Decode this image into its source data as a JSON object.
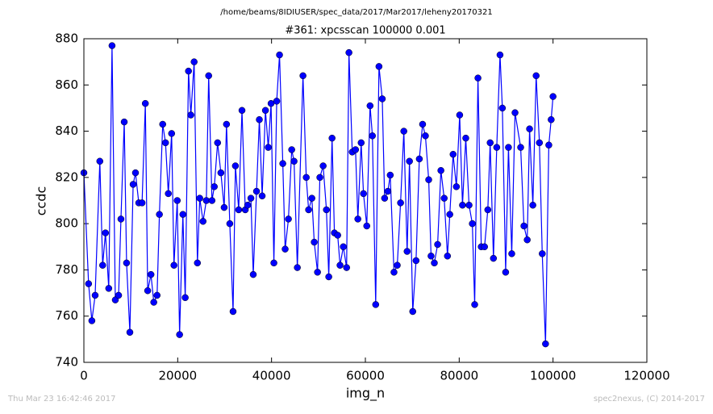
{
  "chart_data": {
    "type": "line",
    "suptitle": "/home/beams/8IDIUSER/spec_data/2017/Mar2017/leheny20170321",
    "title": "#361: xpcsscan 100000 0.001",
    "xlabel": "img_n",
    "ylabel": "ccdc",
    "footer_left": "Thu Mar 23 16:42:46 2017",
    "footer_right": "spec2nexus, (C) 2014-2017",
    "xlim": [
      0,
      120000
    ],
    "xticks": [
      0,
      20000,
      40000,
      60000,
      80000,
      100000,
      120000
    ],
    "ylim": [
      740,
      880
    ],
    "yticks": [
      740,
      760,
      780,
      800,
      820,
      840,
      860,
      880
    ],
    "x": [
      0,
      1000,
      1700,
      2400,
      3400,
      4000,
      4600,
      5300,
      6000,
      6700,
      7400,
      7900,
      8600,
      9100,
      9800,
      10500,
      11000,
      11700,
      12400,
      13100,
      13600,
      14300,
      14900,
      15600,
      16100,
      16800,
      17400,
      18000,
      18700,
      19200,
      19900,
      20400,
      21100,
      21600,
      22300,
      22800,
      23500,
      24200,
      24700,
      25400,
      26100,
      26600,
      27300,
      27800,
      28500,
      29200,
      29900,
      30400,
      31100,
      31800,
      32300,
      33000,
      33700,
      34400,
      34900,
      35600,
      36100,
      36800,
      37400,
      38000,
      38700,
      39300,
      39900,
      40500,
      41100,
      41700,
      42400,
      42900,
      43600,
      44300,
      44800,
      45500,
      46700,
      47400,
      47900,
      48600,
      49100,
      49800,
      50300,
      51000,
      51700,
      52200,
      52900,
      53400,
      54100,
      54600,
      55300,
      56000,
      56500,
      57200,
      57900,
      58400,
      59100,
      59600,
      60300,
      61000,
      61500,
      62200,
      62900,
      63600,
      64100,
      64800,
      65300,
      66100,
      66800,
      67500,
      68200,
      68900,
      69400,
      70100,
      70800,
      71500,
      72200,
      72800,
      73500,
      74000,
      74700,
      75400,
      76100,
      76800,
      77500,
      78000,
      78700,
      79400,
      80100,
      80700,
      81400,
      82100,
      82800,
      83300,
      84000,
      84700,
      85400,
      86100,
      86600,
      87300,
      88000,
      88700,
      89200,
      89900,
      90500,
      91200,
      91900,
      93100,
      93800,
      94500,
      95000,
      95700,
      96400,
      97100,
      97700,
      98400,
      99100,
      99600,
      100000
    ],
    "series": [
      {
        "name": "ccdc",
        "color": "#0000ff",
        "values": [
          822,
          774,
          758,
          769,
          827,
          782,
          796,
          772,
          877,
          767,
          769,
          802,
          844,
          783,
          753,
          817,
          822,
          809,
          809,
          852,
          771,
          778,
          766,
          769,
          804,
          843,
          835,
          813,
          839,
          782,
          810,
          752,
          804,
          768,
          866,
          847,
          870,
          783,
          811,
          801,
          810,
          864,
          810,
          816,
          835,
          822,
          807,
          843,
          800,
          762,
          825,
          806,
          849,
          806,
          808,
          811,
          778,
          814,
          845,
          812,
          849,
          833,
          852,
          783,
          853,
          873,
          826,
          789,
          802,
          832,
          827,
          781,
          864,
          820,
          806,
          811,
          792,
          779,
          820,
          825,
          806,
          777,
          837,
          796,
          795,
          782,
          790,
          781,
          874,
          831,
          832,
          802,
          835,
          813,
          799,
          851,
          838,
          765,
          868,
          854,
          811,
          814,
          821,
          779,
          782,
          809,
          840,
          788,
          827,
          762,
          784,
          828,
          843,
          838,
          819,
          786,
          783,
          791,
          823,
          811,
          786,
          804,
          830,
          816,
          847,
          808,
          837,
          808,
          800,
          765,
          863,
          790,
          790,
          806,
          835,
          785,
          833,
          873,
          850,
          779,
          833,
          787,
          848,
          833,
          799,
          793,
          841,
          808,
          864,
          835,
          787,
          748,
          834,
          845,
          855
        ]
      }
    ]
  }
}
